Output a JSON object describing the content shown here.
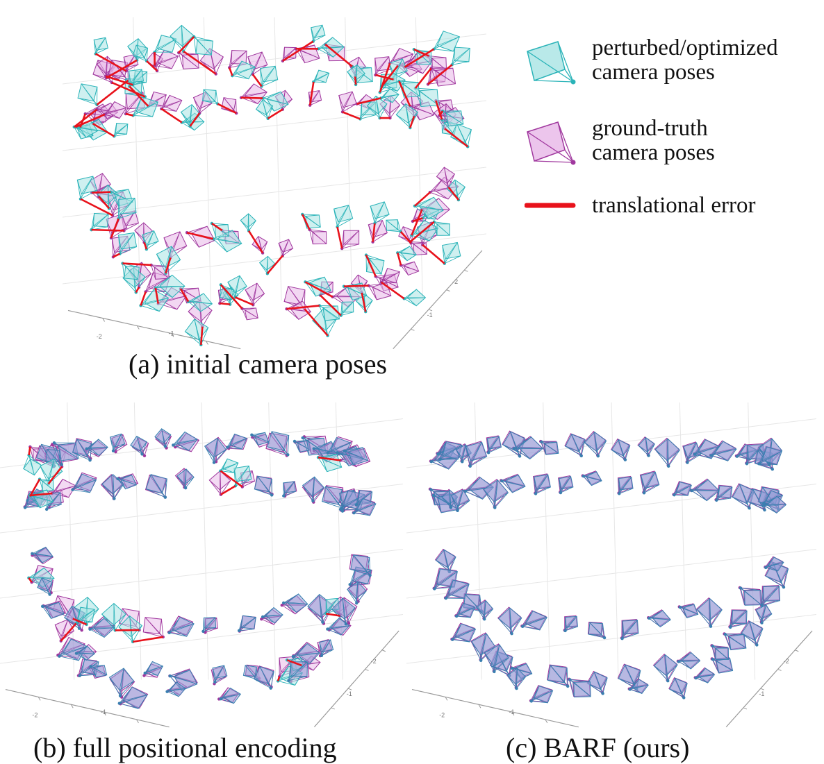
{
  "legend": {
    "items": [
      {
        "kind": "optimized",
        "line1": "perturbed/optimized",
        "line2": "camera poses",
        "color": "#2ab3b8",
        "fill": "#a8e3e3"
      },
      {
        "kind": "ground_truth",
        "line1": "ground-truth",
        "line2": "camera poses",
        "color": "#a0389e",
        "fill": "#e7b6e7"
      },
      {
        "kind": "error",
        "line1": "translational error",
        "line2": "",
        "color": "#e8121b"
      }
    ]
  },
  "panels": [
    {
      "id": "a",
      "caption": "(a) initial camera poses",
      "ticks": [
        "-2",
        "-1",
        "-2",
        "-1"
      ]
    },
    {
      "id": "b",
      "caption": "(b) full positional encoding",
      "ticks": [
        "-2",
        "-1",
        "-2",
        "-1"
      ]
    },
    {
      "id": "c",
      "caption": "(c) BARF (ours)",
      "ticks": [
        "-2",
        "-1",
        "-2",
        "-1"
      ]
    }
  ],
  "colors": {
    "optimized_stroke": "#2ab3b8",
    "optimized_fill": "#a8e3e3",
    "ground_truth_stroke": "#a0389e",
    "ground_truth_fill": "#e7b6e7",
    "aligned_stroke": "#3a7fb0",
    "aligned_fill": "#8c9ad4",
    "error": "#e8121b"
  }
}
